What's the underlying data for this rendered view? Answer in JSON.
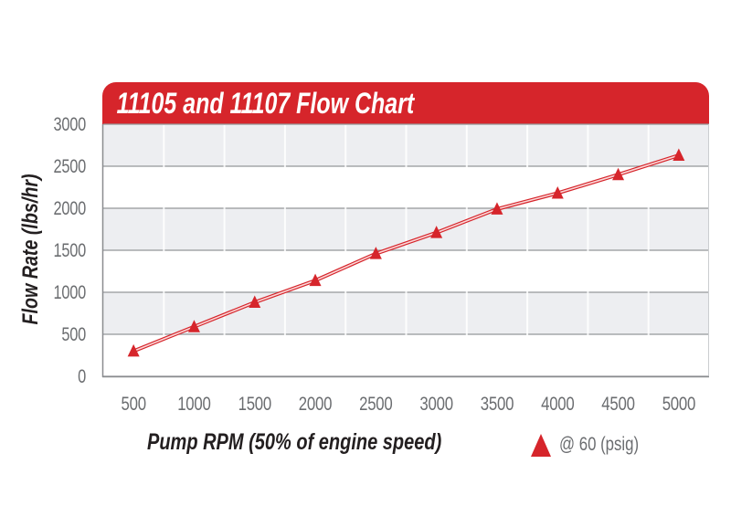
{
  "header": {
    "title": "11105 and 11107 Flow Chart"
  },
  "colors": {
    "red": "#D6252B",
    "band_gray": "#EDEEF1",
    "h_grid": "#95979A",
    "axis": "#8A8C8F",
    "right_edge": "#CBCDD0",
    "tick_text": "#6B6D70",
    "label_text": "#231F20",
    "line_core": "#FBD9DA"
  },
  "chart_data": {
    "type": "line",
    "title": "11105 and 11107 Flow Chart",
    "xlabel": "Pump RPM (50% of engine speed)",
    "ylabel": "Flow Rate (lbs/hr)",
    "x": [
      500,
      1000,
      1500,
      2000,
      2500,
      3000,
      3500,
      4000,
      4500,
      5000
    ],
    "series": [
      {
        "name": "@ 60 (psig)",
        "marker": "triangle-up",
        "color": "#D6252B",
        "values": [
          300,
          590,
          880,
          1140,
          1460,
          1710,
          1990,
          2180,
          2400,
          2630
        ]
      }
    ],
    "ylim": [
      0,
      3000
    ],
    "yticks": [
      0,
      500,
      1000,
      1500,
      2000,
      2500,
      3000
    ],
    "grid": "horizontal bands every 500 with faint vertical category dividers",
    "legend_position": "bottom-right"
  }
}
